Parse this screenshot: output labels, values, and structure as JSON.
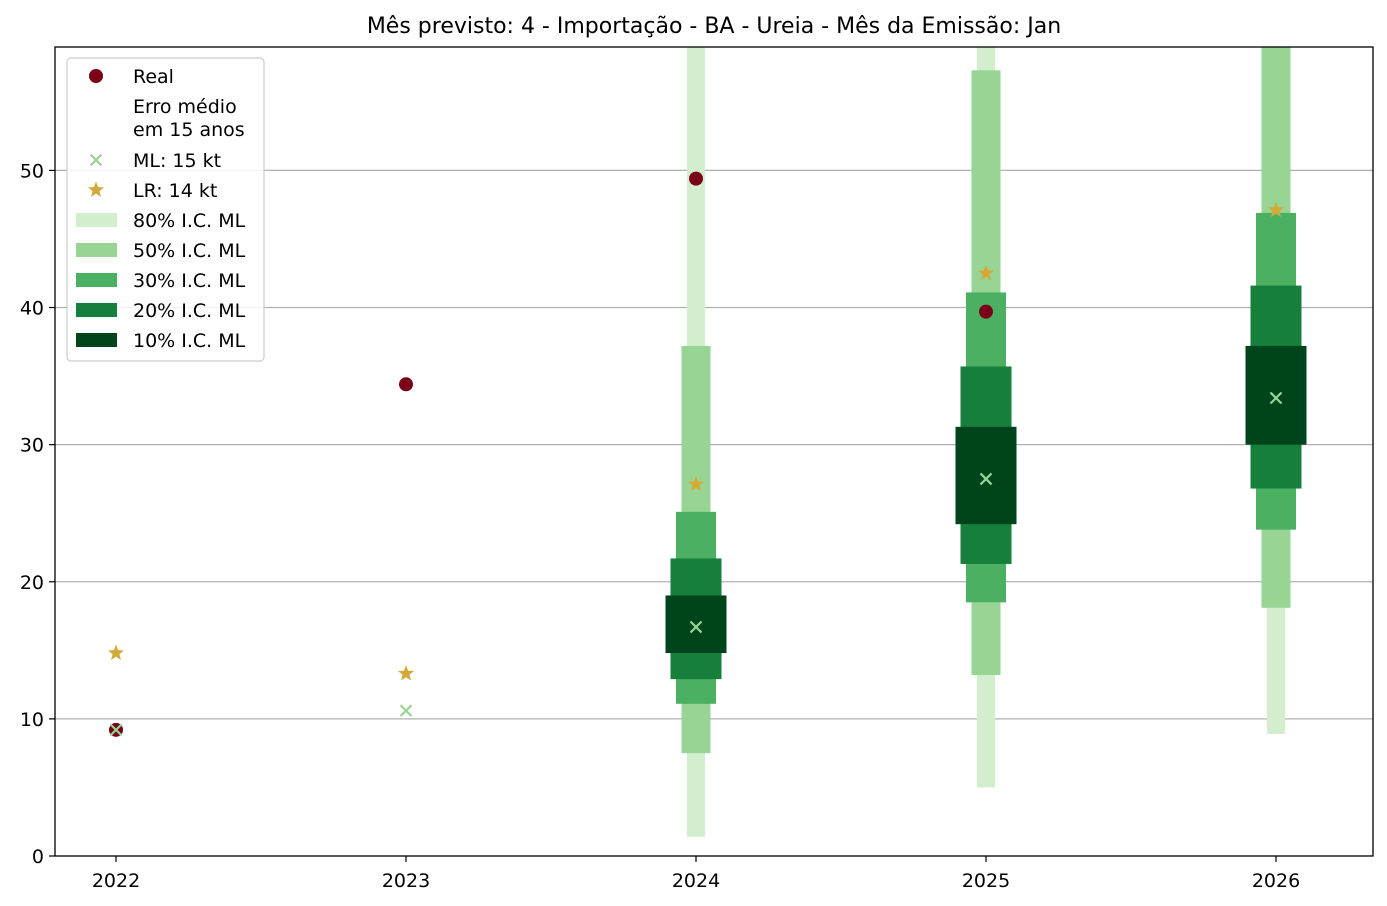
{
  "chart_data": {
    "type": "scatter",
    "title": "Mês previsto: 4 - Importação - BA - Ureia - Mês da Emissão: Jan",
    "xlabel": "",
    "ylabel": "",
    "categories": [
      "2022",
      "2023",
      "2024",
      "2025",
      "2026"
    ],
    "ylim": [
      0,
      59
    ],
    "yticks": [
      0,
      10,
      20,
      30,
      40,
      50
    ],
    "grid": "horizontal",
    "legend_position": "top-left",
    "series": [
      {
        "name": "Real",
        "marker": "circle",
        "color": "#7a0019",
        "values": [
          9.2,
          34.4,
          49.4,
          39.7,
          null
        ]
      },
      {
        "name": "ML: 15 kt",
        "marker": "x",
        "color": "#98d594",
        "values": [
          9.2,
          10.6,
          16.7,
          27.5,
          33.4
        ]
      },
      {
        "name": "LR: 14 kt",
        "marker": "star",
        "color": "#d4a937",
        "values": [
          14.8,
          13.3,
          27.1,
          42.5,
          47.1
        ]
      }
    ],
    "legend_note": [
      "Erro médio",
      "em 15 anos"
    ],
    "intervals": [
      {
        "name": "80% I.C. ML",
        "color": "#d3eecd",
        "ranges": [
          null,
          null,
          [
            1.4,
            59
          ],
          [
            5.0,
            59
          ],
          [
            8.9,
            18.1
          ]
        ]
      },
      {
        "name": "50% I.C. ML",
        "color": "#98d594",
        "ranges": [
          null,
          null,
          [
            7.5,
            37.2
          ],
          [
            13.2,
            57.3
          ],
          [
            18.1,
            59
          ]
        ]
      },
      {
        "name": "30% I.C. ML",
        "color": "#4bb062",
        "ranges": [
          null,
          null,
          [
            11.1,
            25.1
          ],
          [
            18.5,
            41.1
          ],
          [
            23.8,
            46.9
          ]
        ]
      },
      {
        "name": "20% I.C. ML",
        "color": "#157f3b",
        "ranges": [
          null,
          null,
          [
            12.9,
            21.7
          ],
          [
            21.3,
            35.7
          ],
          [
            26.8,
            41.6
          ]
        ]
      },
      {
        "name": "10% I.C. ML",
        "color": "#00441b",
        "ranges": [
          null,
          null,
          [
            14.8,
            19.0
          ],
          [
            24.2,
            31.3
          ],
          [
            30.0,
            37.2
          ]
        ]
      }
    ]
  }
}
